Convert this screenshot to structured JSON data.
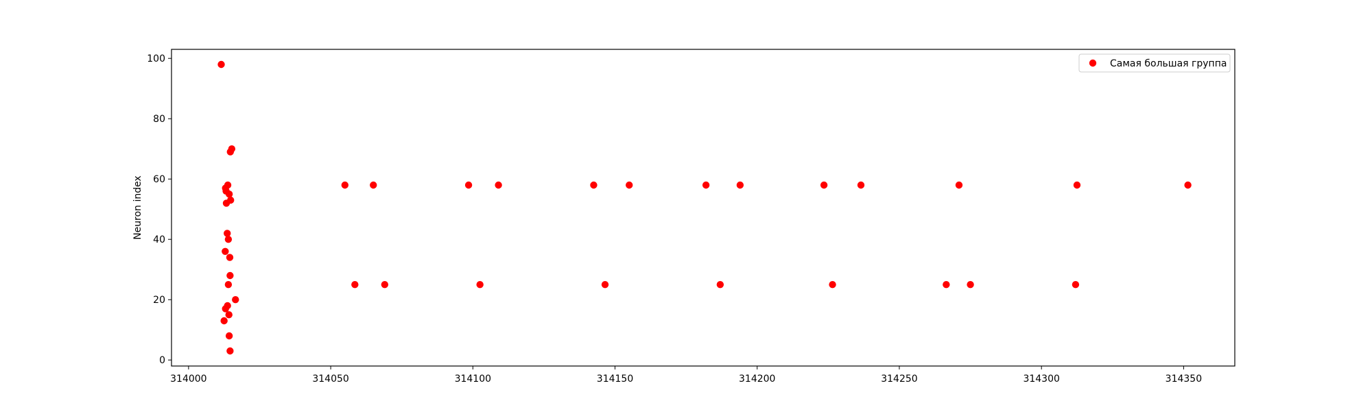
{
  "chart_data": {
    "type": "scatter",
    "title": "",
    "xlabel": "",
    "ylabel": "Neuron index",
    "xlim": [
      313994,
      314368
    ],
    "ylim": [
      -2,
      103
    ],
    "xticks": [
      314000,
      314050,
      314100,
      314150,
      314200,
      314250,
      314300,
      314350
    ],
    "yticks": [
      0,
      20,
      40,
      60,
      80,
      100
    ],
    "grid": false,
    "legend": {
      "position": "top-right"
    },
    "series": [
      {
        "name": "Самая большая группа",
        "color": "#ff0000",
        "points": [
          [
            314011.5,
            98
          ],
          [
            314015.2,
            70
          ],
          [
            314014.7,
            69
          ],
          [
            314013.8,
            58
          ],
          [
            314013.0,
            57
          ],
          [
            314013.2,
            56
          ],
          [
            314014.3,
            55
          ],
          [
            314014.8,
            53
          ],
          [
            314013.3,
            52
          ],
          [
            314013.6,
            42
          ],
          [
            314014.0,
            40
          ],
          [
            314012.9,
            36
          ],
          [
            314014.5,
            34
          ],
          [
            314014.6,
            28
          ],
          [
            314014.0,
            25
          ],
          [
            314016.5,
            20
          ],
          [
            314013.7,
            18
          ],
          [
            314013.0,
            17
          ],
          [
            314014.2,
            15
          ],
          [
            314012.5,
            13
          ],
          [
            314014.3,
            8
          ],
          [
            314014.6,
            3
          ],
          [
            314055.0,
            58
          ],
          [
            314065.0,
            58
          ],
          [
            314098.5,
            58
          ],
          [
            314109.0,
            58
          ],
          [
            314142.5,
            58
          ],
          [
            314155.0,
            58
          ],
          [
            314182.0,
            58
          ],
          [
            314194.0,
            58
          ],
          [
            314223.5,
            58
          ],
          [
            314236.5,
            58
          ],
          [
            314271.0,
            58
          ],
          [
            314312.5,
            58
          ],
          [
            314351.5,
            58
          ],
          [
            314058.5,
            25
          ],
          [
            314069.0,
            25
          ],
          [
            314102.5,
            25
          ],
          [
            314146.5,
            25
          ],
          [
            314187.0,
            25
          ],
          [
            314226.5,
            25
          ],
          [
            314266.5,
            25
          ],
          [
            314275.0,
            25
          ],
          [
            314312.0,
            25
          ]
        ]
      }
    ]
  }
}
